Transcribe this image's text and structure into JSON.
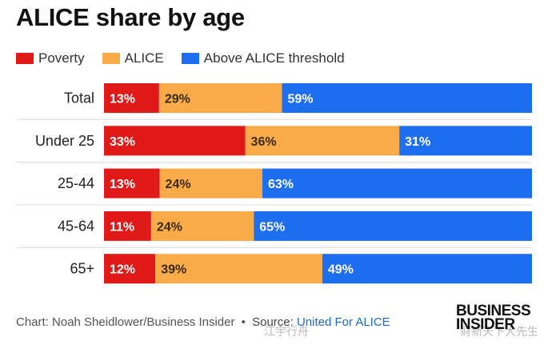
{
  "chart_data": {
    "type": "bar",
    "orientation": "horizontal",
    "stacked": true,
    "title": "ALICE share by age",
    "categories": [
      "Total",
      "Under 25",
      "25-44",
      "45-64",
      "65+"
    ],
    "series": [
      {
        "name": "Poverty",
        "color": "#e01919",
        "values": [
          13,
          33,
          13,
          11,
          12
        ],
        "labels": [
          "13%",
          "33%",
          "13%",
          "11%",
          "12%"
        ]
      },
      {
        "name": "ALICE",
        "color": "#f9ab4a",
        "values": [
          29,
          36,
          24,
          24,
          39
        ],
        "labels": [
          "29%",
          "36%",
          "24%",
          "24%",
          "39%"
        ]
      },
      {
        "name": "Above ALICE threshold",
        "color": "#1e6ef0",
        "values": [
          59,
          31,
          63,
          65,
          49
        ],
        "labels": [
          "59%",
          "31%",
          "63%",
          "65%",
          "49%"
        ]
      }
    ],
    "xlim": [
      0,
      100
    ],
    "legend_position": "top-left"
  },
  "footer": {
    "chart_credit": "Chart: Noah Sheidlower/Business Insider",
    "bullet": "•",
    "source_label": "Source:",
    "source_link": "United For ALICE"
  },
  "brand": {
    "line1": "BUSINESS",
    "line2": "INSIDER"
  },
  "watermarks": {
    "left": "江宇行舟",
    "right": "财新天下大先生"
  }
}
